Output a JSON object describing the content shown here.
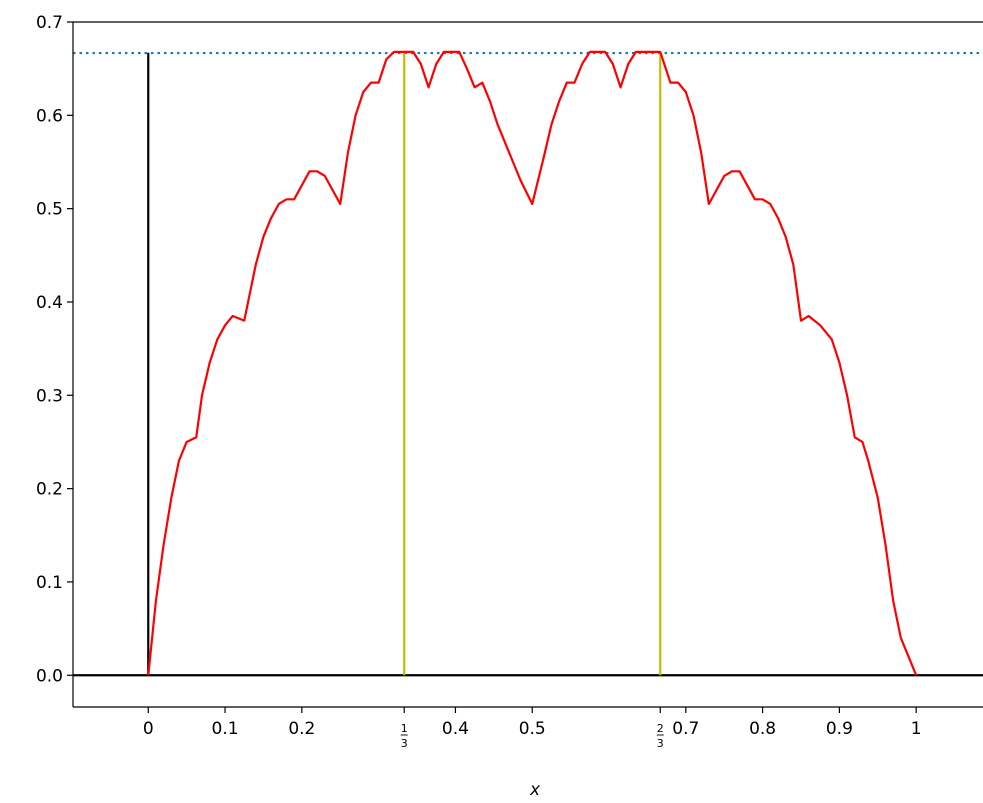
{
  "chart_data": {
    "type": "line",
    "title": "",
    "xlabel": "x",
    "ylabel": "",
    "xlim": [
      -0.098,
      1.087
    ],
    "ylim": [
      -0.034,
      0.7
    ],
    "x_ticks": [
      {
        "value": 0,
        "label": "0"
      },
      {
        "value": 0.1,
        "label": "0.1"
      },
      {
        "value": 0.2,
        "label": "0.2"
      },
      {
        "value": 0.3333,
        "label": "",
        "numerator": "1",
        "denominator": "3"
      },
      {
        "value": 0.4,
        "label": "0.4"
      },
      {
        "value": 0.5,
        "label": "0.5"
      },
      {
        "value": 0.6667,
        "label": "",
        "numerator": "2",
        "denominator": "3"
      },
      {
        "value": 0.7,
        "label": "0.7"
      },
      {
        "value": 0.8,
        "label": "0.8"
      },
      {
        "value": 0.9,
        "label": "0.9"
      },
      {
        "value": 1,
        "label": "1"
      }
    ],
    "y_ticks": [
      {
        "value": 0.0,
        "label": "0.0"
      },
      {
        "value": 0.1,
        "label": "0.1"
      },
      {
        "value": 0.2,
        "label": "0.2"
      },
      {
        "value": 0.3,
        "label": "0.3"
      },
      {
        "value": 0.4,
        "label": "0.4"
      },
      {
        "value": 0.5,
        "label": "0.5"
      },
      {
        "value": 0.6,
        "label": "0.6"
      },
      {
        "value": 0.7,
        "label": "0.7"
      }
    ],
    "series": [
      {
        "color": "#ff0000",
        "x": [
          0,
          0.01,
          0.02,
          0.03,
          0.04,
          0.05,
          0.0625,
          0.07,
          0.08,
          0.09,
          0.1,
          0.11,
          0.125,
          0.14,
          0.15,
          0.16,
          0.17,
          0.18,
          0.19,
          0.2,
          0.21,
          0.22,
          0.23,
          0.24,
          0.25,
          0.26,
          0.27,
          0.28,
          0.29,
          0.3,
          0.31,
          0.32,
          0.3333,
          0.345,
          0.355,
          0.365,
          0.375,
          0.385,
          0.395,
          0.405,
          0.415,
          0.425,
          0.435,
          0.445,
          0.455,
          0.465,
          0.475,
          0.485,
          0.5,
          0.515,
          0.525,
          0.535,
          0.545,
          0.555,
          0.565,
          0.575,
          0.585,
          0.595,
          0.605,
          0.615,
          0.625,
          0.635,
          0.645,
          0.655,
          0.6667,
          0.68,
          0.69,
          0.7,
          0.71,
          0.72,
          0.73,
          0.74,
          0.75,
          0.76,
          0.77,
          0.78,
          0.79,
          0.8,
          0.81,
          0.82,
          0.83,
          0.84,
          0.85,
          0.86,
          0.875,
          0.89,
          0.9,
          0.91,
          0.92,
          0.93,
          0.9375,
          0.95,
          0.96,
          0.97,
          0.98,
          0.99,
          1.0
        ],
        "y": [
          0,
          0.08,
          0.14,
          0.19,
          0.23,
          0.25,
          0.255,
          0.3,
          0.335,
          0.36,
          0.375,
          0.385,
          0.38,
          0.44,
          0.47,
          0.49,
          0.505,
          0.51,
          0.51,
          0.525,
          0.54,
          0.54,
          0.535,
          0.52,
          0.505,
          0.56,
          0.6,
          0.625,
          0.635,
          0.635,
          0.66,
          0.668,
          0.668,
          0.668,
          0.655,
          0.63,
          0.655,
          0.668,
          0.668,
          0.668,
          0.65,
          0.63,
          0.635,
          0.615,
          0.59,
          0.57,
          0.55,
          0.53,
          0.505,
          0.555,
          0.59,
          0.615,
          0.635,
          0.635,
          0.655,
          0.668,
          0.668,
          0.668,
          0.655,
          0.63,
          0.655,
          0.668,
          0.668,
          0.668,
          0.668,
          0.635,
          0.635,
          0.625,
          0.6,
          0.56,
          0.505,
          0.52,
          0.535,
          0.54,
          0.54,
          0.525,
          0.51,
          0.51,
          0.505,
          0.49,
          0.47,
          0.44,
          0.38,
          0.385,
          0.375,
          0.36,
          0.335,
          0.3,
          0.255,
          0.25,
          0.23,
          0.19,
          0.14,
          0.08,
          0.04,
          0.02,
          0
        ]
      }
    ],
    "vertical_lines": [
      {
        "x": 0,
        "y_top": 0.667,
        "color": "#000000"
      },
      {
        "x": 0.3333,
        "y_top": 0.667,
        "color": "#bfbf00"
      },
      {
        "x": 0.6667,
        "y_top": 0.667,
        "color": "#bfbf00"
      }
    ],
    "horizontal_lines": [
      {
        "y": 0.6667,
        "color": "#1f77b4",
        "style": "dotted"
      },
      {
        "y": 0,
        "color": "#000000",
        "style": "solid"
      }
    ],
    "grid": false,
    "legend": "none"
  }
}
